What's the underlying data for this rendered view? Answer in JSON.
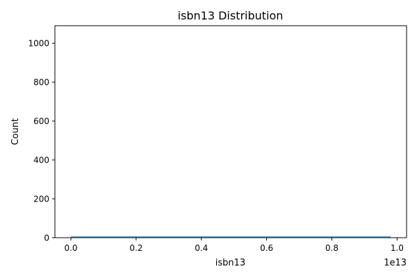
{
  "chart_data": {
    "type": "histogram",
    "title": "isbn13 Distribution",
    "xlabel": "isbn13",
    "ylabel": "Count",
    "x_offset_text": "1e13",
    "xlim": [
      -0.049,
      1.029
    ],
    "ylim": [
      0,
      1090
    ],
    "x_ticks": [
      0.0,
      0.2,
      0.4,
      0.6,
      0.8,
      1.0
    ],
    "x_tick_labels": [
      "0.0",
      "0.2",
      "0.4",
      "0.6",
      "0.8",
      "1.0"
    ],
    "y_ticks": [
      0,
      200,
      400,
      600,
      800,
      1000
    ],
    "y_tick_labels": [
      "0",
      "200",
      "400",
      "600",
      "800",
      "1000"
    ],
    "data_range_x": [
      0.0,
      0.98
    ],
    "series_color": "#1f77b4",
    "grid": false
  }
}
